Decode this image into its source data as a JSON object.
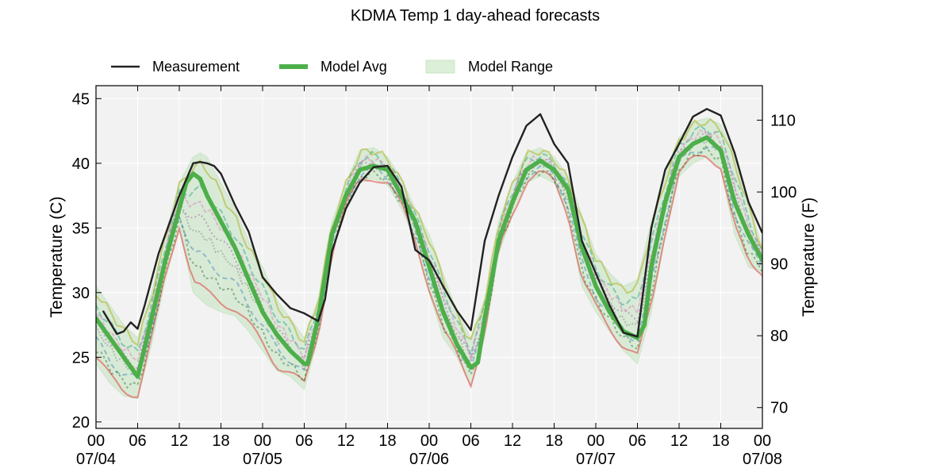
{
  "chart_data": {
    "type": "line",
    "title": "KDMA Temp 1 day-ahead forecasts",
    "ylabel_left": "Temperature (C)",
    "ylabel_right": "Temperature (F)",
    "ylim": [
      19.5,
      46
    ],
    "xlim": [
      0,
      96
    ],
    "x_units": "hours since 07/04 00:00",
    "x_ticks": [
      0,
      6,
      12,
      18,
      24,
      30,
      36,
      42,
      48,
      54,
      60,
      66,
      72,
      78,
      84,
      90,
      96
    ],
    "x_tick_labels": [
      "00",
      "06",
      "12",
      "18",
      "00",
      "06",
      "12",
      "18",
      "00",
      "06",
      "12",
      "18",
      "00",
      "06",
      "12",
      "18",
      "00"
    ],
    "date_ticks": [
      0,
      24,
      48,
      72,
      96
    ],
    "date_labels": [
      "07/04",
      "07/05",
      "07/06",
      "07/07",
      "07/08"
    ],
    "y_ticks_left": [
      20,
      25,
      30,
      35,
      40,
      45
    ],
    "y_ticks_right_f": [
      70,
      80,
      90,
      100,
      110
    ],
    "grid": true,
    "legend": {
      "placement": "top-left",
      "entries": [
        "Measurement",
        "Model Avg",
        "Model Range"
      ]
    },
    "colors": {
      "measurement": "#222222",
      "model_avg": "#4daf4a",
      "model_range": "#b9e0b4",
      "plot_bg": "#f2f2f2",
      "grid": "#ffffff",
      "members": [
        "#e41a1c",
        "#377eb8",
        "#984ea3",
        "#1f9e89",
        "#a6a600",
        "#2b6a2b",
        "#e377c2",
        "#7f7f7f"
      ]
    },
    "series": [
      {
        "name": "Measurement",
        "x": [
          1,
          2,
          3,
          4,
          5,
          6,
          7,
          9,
          12,
          14,
          15,
          16,
          17,
          18,
          20,
          22,
          24,
          26,
          28,
          30,
          32,
          33,
          34,
          36,
          38,
          40,
          42,
          44,
          46,
          48,
          50,
          52,
          54,
          56,
          58,
          60,
          62,
          64,
          66,
          68,
          70,
          72,
          74,
          76,
          78,
          80,
          82,
          84,
          86,
          88,
          90,
          92,
          94,
          96
        ],
        "y": [
          28.6,
          27.7,
          26.8,
          27.0,
          27.7,
          27.2,
          29.0,
          33.0,
          37.5,
          40.0,
          40.1,
          40.0,
          39.8,
          39.2,
          36.8,
          34.7,
          31.2,
          29.9,
          28.8,
          28.4,
          27.8,
          29.5,
          33.2,
          36.5,
          38.5,
          39.7,
          39.8,
          38.2,
          33.3,
          32.5,
          30.5,
          28.6,
          27.1,
          34.0,
          37.5,
          40.5,
          42.9,
          43.8,
          41.5,
          40.0,
          34.0,
          31.5,
          29.0,
          26.9,
          26.6,
          35.0,
          39.5,
          41.5,
          43.6,
          44.2,
          43.7,
          40.8,
          37.0,
          34.6
        ]
      },
      {
        "name": "Model Avg",
        "x": [
          0,
          2,
          4,
          6,
          8,
          10,
          12,
          13,
          14,
          15,
          16,
          18,
          20,
          22,
          24,
          26,
          28,
          30,
          30.5,
          32,
          34,
          36,
          38,
          40,
          42,
          44,
          46,
          48,
          50,
          52,
          54,
          55,
          56,
          58,
          60,
          62,
          64,
          66,
          68,
          70,
          72,
          74,
          76,
          78,
          79,
          80,
          82,
          84,
          86,
          88,
          90,
          92,
          94,
          96
        ],
        "y": [
          28.0,
          26.5,
          25.0,
          23.5,
          28.0,
          32.5,
          36.5,
          38.5,
          39.2,
          38.8,
          37.5,
          35.5,
          33.5,
          31.0,
          28.5,
          26.8,
          25.5,
          24.5,
          24.5,
          28.0,
          34.5,
          37.5,
          39.5,
          39.8,
          39.5,
          37.5,
          35.5,
          32.0,
          28.5,
          26.0,
          24.2,
          24.6,
          28.0,
          34.0,
          37.0,
          39.5,
          40.2,
          39.5,
          38.0,
          33.5,
          30.5,
          28.5,
          27.0,
          26.5,
          27.5,
          32.0,
          37.0,
          40.5,
          41.5,
          42.0,
          41.0,
          37.0,
          34.5,
          32.5
        ]
      },
      {
        "name": "Model Range",
        "x": [
          0,
          2,
          4,
          6,
          8,
          10,
          12,
          14,
          15,
          16,
          18,
          20,
          22,
          24,
          26,
          28,
          30,
          32,
          34,
          36,
          38,
          40,
          42,
          44,
          46,
          48,
          50,
          52,
          54,
          56,
          58,
          60,
          62,
          64,
          66,
          68,
          70,
          72,
          74,
          76,
          78,
          80,
          82,
          84,
          86,
          88,
          90,
          92,
          94,
          96
        ],
        "upper": [
          30.5,
          29.0,
          27.5,
          26.5,
          30.0,
          34.5,
          38.5,
          40.5,
          40.8,
          40.5,
          38.5,
          36.5,
          34.0,
          32.0,
          29.5,
          28.0,
          26.5,
          29.5,
          35.5,
          38.5,
          41.0,
          41.2,
          40.5,
          38.8,
          36.5,
          34.5,
          31.5,
          28.5,
          26.5,
          29.5,
          35.5,
          38.5,
          40.8,
          41.2,
          40.5,
          39.0,
          36.0,
          33.0,
          31.5,
          30.5,
          31.0,
          35.5,
          39.0,
          42.0,
          43.2,
          43.5,
          43.0,
          40.5,
          37.0,
          33.5
        ],
        "lower": [
          24.5,
          23.0,
          22.0,
          21.8,
          26.0,
          31.0,
          35.0,
          30.0,
          29.5,
          29.0,
          28.5,
          28.2,
          27.0,
          25.5,
          24.0,
          23.5,
          22.5,
          26.5,
          33.0,
          36.5,
          38.5,
          38.8,
          38.3,
          36.5,
          34.0,
          30.0,
          26.5,
          25.0,
          22.8,
          26.5,
          33.0,
          36.0,
          38.5,
          39.0,
          38.5,
          36.0,
          30.5,
          28.5,
          27.0,
          25.5,
          24.5,
          28.5,
          34.5,
          39.0,
          40.0,
          40.5,
          39.5,
          34.5,
          32.0,
          31.5
        ]
      }
    ]
  }
}
